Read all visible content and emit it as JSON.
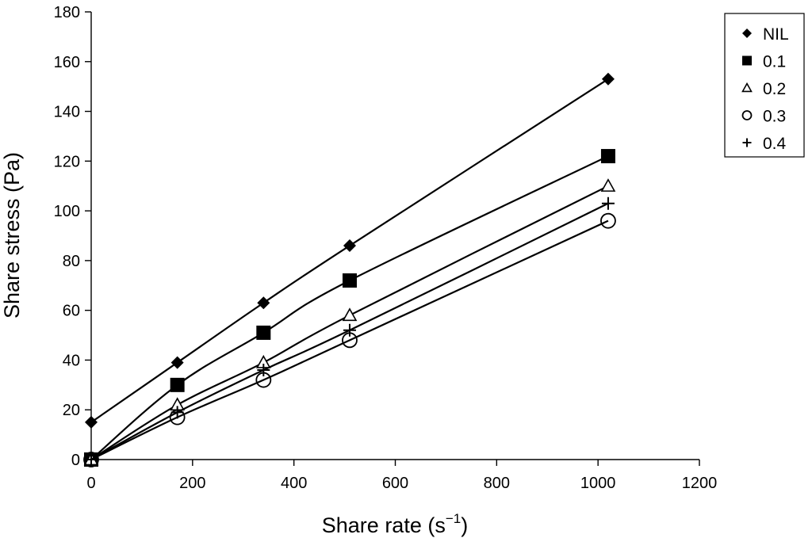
{
  "chart_data": {
    "type": "line",
    "title": "",
    "xlabel": "Share rate (s",
    "xlabel_sup": "−1",
    "xlabel_close": ")",
    "ylabel": "Share stress (Pa)",
    "xlim": [
      0,
      1200
    ],
    "ylim": [
      0,
      180
    ],
    "xticks": [
      "0",
      "200",
      "400",
      "600",
      "800",
      "1000",
      "1200"
    ],
    "yticks": [
      "0",
      "20",
      "40",
      "60",
      "80",
      "100",
      "120",
      "140",
      "160",
      "180"
    ],
    "grid": false,
    "legend_position": "top-right",
    "series": [
      {
        "name": "NIL",
        "marker": "diamond",
        "x": [
          0,
          170,
          340,
          510,
          1020
        ],
        "y": [
          15,
          39,
          63,
          86,
          153
        ]
      },
      {
        "name": "0.1",
        "marker": "square",
        "x": [
          0,
          170,
          340,
          510,
          1020
        ],
        "y": [
          0,
          30,
          51,
          72,
          122
        ]
      },
      {
        "name": "0.2",
        "marker": "triangle",
        "x": [
          0,
          170,
          340,
          510,
          1020
        ],
        "y": [
          0,
          22,
          39,
          58,
          110
        ]
      },
      {
        "name": "0.3",
        "marker": "circle",
        "x": [
          0,
          170,
          340,
          510,
          1020
        ],
        "y": [
          0,
          17,
          32,
          48,
          96
        ]
      },
      {
        "name": "0.4",
        "marker": "plus",
        "x": [
          0,
          170,
          340,
          510,
          1020
        ],
        "y": [
          0,
          19,
          36,
          52,
          103
        ]
      }
    ]
  }
}
